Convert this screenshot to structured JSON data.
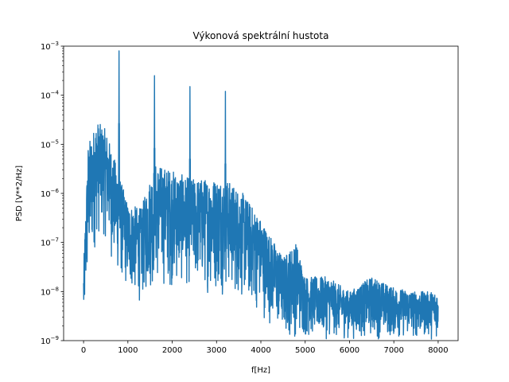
{
  "chart_data": {
    "type": "line",
    "title": "Výkonová spektrální hustota",
    "xlabel": "f[Hz]",
    "ylabel": "PSD [V**2/Hz]",
    "xlim": [
      -450,
      8450
    ],
    "ylim": [
      1e-09,
      0.001
    ],
    "yscale": "log",
    "grid": false,
    "x_ticks": [
      0,
      1000,
      2000,
      3000,
      4000,
      5000,
      6000,
      7000,
      8000
    ],
    "x_tick_labels": [
      "0",
      "1000",
      "2000",
      "3000",
      "4000",
      "5000",
      "6000",
      "7000",
      "8000"
    ],
    "y_ticks": [
      1e-09,
      1e-08,
      1e-07,
      1e-06,
      1e-05,
      0.0001,
      0.001
    ],
    "y_tick_labels": [
      {
        "base": "10",
        "exp": "−9"
      },
      {
        "base": "10",
        "exp": "−8"
      },
      {
        "base": "10",
        "exp": "−7"
      },
      {
        "base": "10",
        "exp": "−6"
      },
      {
        "base": "10",
        "exp": "−5"
      },
      {
        "base": "10",
        "exp": "−4"
      },
      {
        "base": "10",
        "exp": "−3"
      }
    ],
    "series_color": "#1f77b4",
    "peaks": [
      {
        "x": 800,
        "y": 0.0008
      },
      {
        "x": 1600,
        "y": 0.00025
      },
      {
        "x": 2400,
        "y": 0.00015
      },
      {
        "x": 3200,
        "y": 0.00012
      }
    ],
    "envelope": [
      {
        "x": 0,
        "hi": 3e-08,
        "lo": 1e-09
      },
      {
        "x": 100,
        "hi": 1e-05,
        "lo": 1e-08
      },
      {
        "x": 300,
        "hi": 3e-05,
        "lo": 1e-07
      },
      {
        "x": 500,
        "hi": 2e-05,
        "lo": 1e-07
      },
      {
        "x": 700,
        "hi": 5e-06,
        "lo": 2e-08
      },
      {
        "x": 1000,
        "hi": 6e-07,
        "lo": 8e-09
      },
      {
        "x": 1300,
        "hi": 5e-07,
        "lo": 5e-09
      },
      {
        "x": 1600,
        "hi": 4e-06,
        "lo": 1e-08
      },
      {
        "x": 2000,
        "hi": 3e-06,
        "lo": 1e-08
      },
      {
        "x": 2400,
        "hi": 2e-06,
        "lo": 1e-08
      },
      {
        "x": 2800,
        "hi": 2e-06,
        "lo": 8e-09
      },
      {
        "x": 3200,
        "hi": 2e-06,
        "lo": 8e-09
      },
      {
        "x": 3600,
        "hi": 1e-06,
        "lo": 5e-09
      },
      {
        "x": 4000,
        "hi": 3e-07,
        "lo": 3e-09
      },
      {
        "x": 4500,
        "hi": 5e-08,
        "lo": 1e-09
      },
      {
        "x": 4800,
        "hi": 1e-07,
        "lo": 1e-09
      },
      {
        "x": 5000,
        "hi": 2e-08,
        "lo": 1e-09
      },
      {
        "x": 5500,
        "hi": 2e-08,
        "lo": 1e-09
      },
      {
        "x": 6000,
        "hi": 1e-08,
        "lo": 1e-09
      },
      {
        "x": 6500,
        "hi": 2e-08,
        "lo": 1e-09
      },
      {
        "x": 7000,
        "hi": 1.2e-08,
        "lo": 1e-09
      },
      {
        "x": 7500,
        "hi": 1e-08,
        "lo": 1e-09
      },
      {
        "x": 8000,
        "hi": 1e-08,
        "lo": 1e-09
      }
    ]
  }
}
